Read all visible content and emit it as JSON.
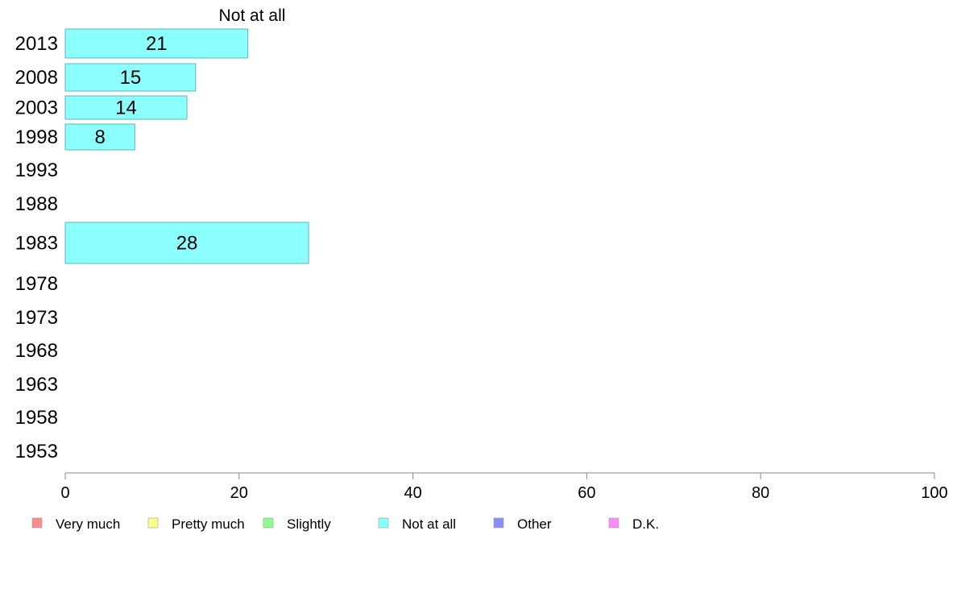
{
  "chart_data": {
    "type": "bar",
    "orientation": "horizontal",
    "title": "",
    "series_title": "Not at all",
    "categories": [
      "2013",
      "2008",
      "2003",
      "1998",
      "1993",
      "1988",
      "1983",
      "1978",
      "1973",
      "1968",
      "1963",
      "1958",
      "1953"
    ],
    "series": [
      {
        "name": "Not at all",
        "values": [
          21,
          15,
          14,
          8,
          null,
          null,
          28,
          null,
          null,
          null,
          null,
          null,
          null
        ]
      }
    ],
    "xlim": [
      0,
      100
    ],
    "xticks": [
      0,
      20,
      40,
      60,
      80,
      100
    ],
    "xlabel": "",
    "ylabel": "",
    "grid": false,
    "legend_position": "bottom",
    "legend": [
      {
        "label": "Very much",
        "color": "#ff8c8c"
      },
      {
        "label": "Pretty much",
        "color": "#ffff8c"
      },
      {
        "label": "Slightly",
        "color": "#8cff8c"
      },
      {
        "label": "Not at all",
        "color": "#8cffff"
      },
      {
        "label": "Other",
        "color": "#8c8cff"
      },
      {
        "label": "D.K.",
        "color": "#ff8cff"
      }
    ],
    "bar_color": "#8cffff",
    "bar_stroke": "#5fb5b5",
    "axis_color": "#888888"
  }
}
